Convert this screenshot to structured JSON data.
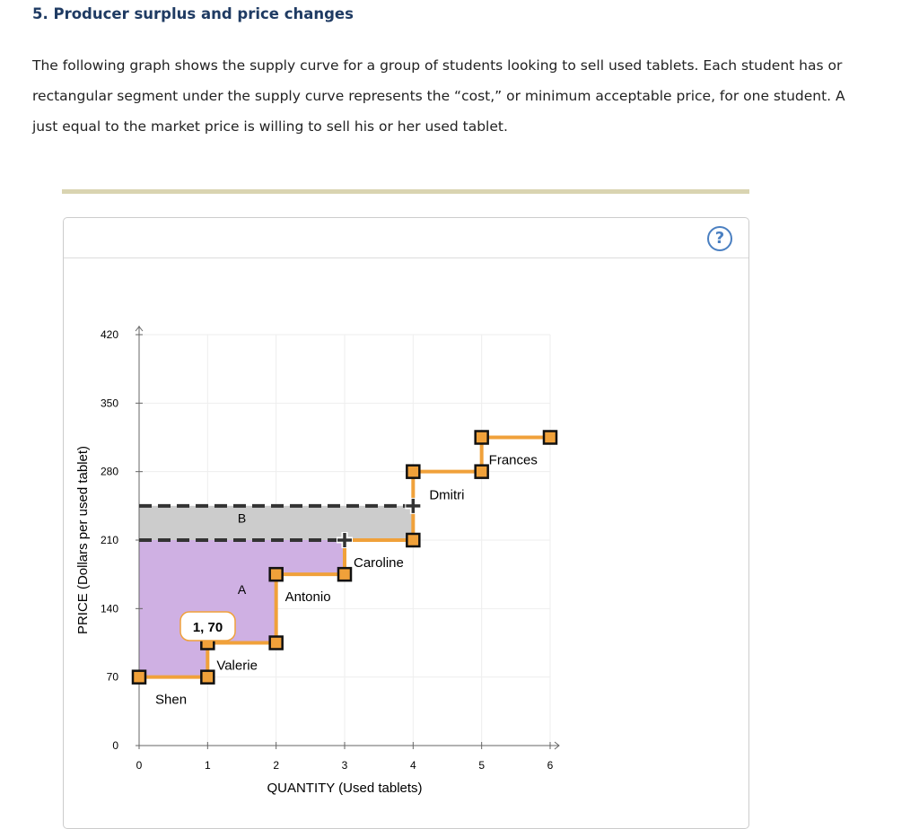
{
  "title": "5. Producer surplus and price changes",
  "intro": [
    "The following graph shows the supply curve for a group of students looking to sell used tablets. Each student has or",
    "rectangular segment under the supply curve represents the “cost,” or minimum acceptable price, for one student. A",
    "just equal to the market price is willing to sell his or her used tablet."
  ],
  "help_label": "?",
  "chart_data": {
    "type": "step",
    "xlabel": "QUANTITY (Used tablets)",
    "ylabel": "PRICE (Dollars per used tablet)",
    "xlim": [
      0,
      6
    ],
    "ylim": [
      0,
      420
    ],
    "xticks": [
      0,
      1,
      2,
      3,
      4,
      5,
      6
    ],
    "yticks": [
      0,
      70,
      140,
      210,
      280,
      350,
      420
    ],
    "grid": true,
    "supply": [
      {
        "name": "Shen",
        "q": [
          0,
          1
        ],
        "price": 70
      },
      {
        "name": "Valerie",
        "q": [
          1,
          2
        ],
        "price": 105
      },
      {
        "name": "Antonio",
        "q": [
          2,
          3
        ],
        "price": 175
      },
      {
        "name": "Caroline",
        "q": [
          3,
          4
        ],
        "price": 210
      },
      {
        "name": "Dmitri",
        "q": [
          4,
          5
        ],
        "price": 280
      },
      {
        "name": "Frances",
        "q": [
          5,
          6
        ],
        "price": 315
      }
    ],
    "price_lines": [
      {
        "price": 245,
        "q_end": 4
      },
      {
        "price": 210,
        "q_end": 3
      }
    ],
    "areas": [
      {
        "label": "A",
        "color": "#cfb0e3"
      },
      {
        "label": "B",
        "color": "#cccccc"
      }
    ],
    "supply_color": "#f0a13a",
    "tooltip": "1, 70"
  }
}
